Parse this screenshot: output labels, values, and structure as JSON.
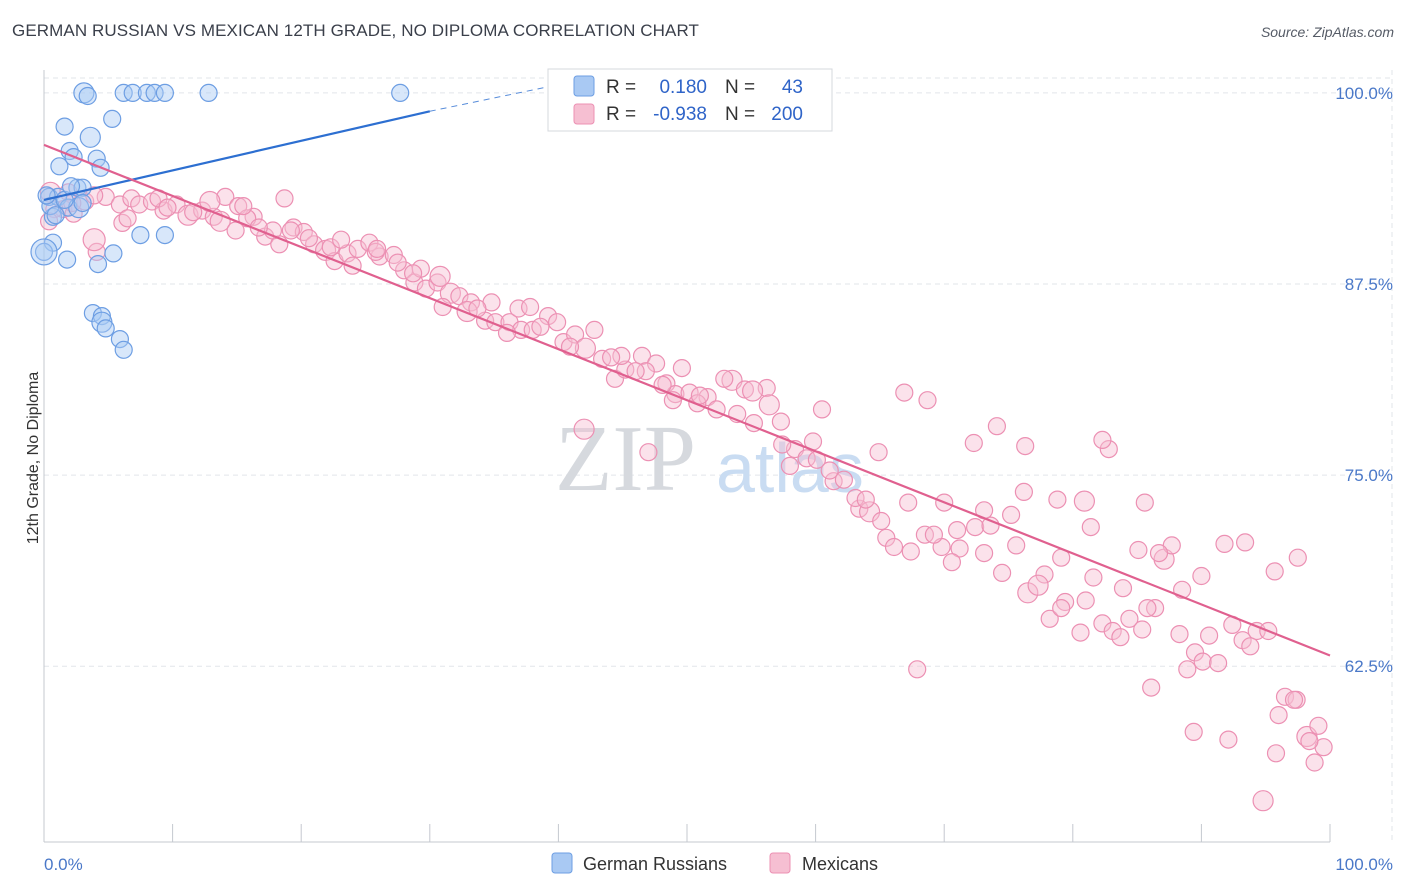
{
  "header": {
    "title": "GERMAN RUSSIAN VS MEXICAN 12TH GRADE, NO DIPLOMA CORRELATION CHART",
    "source": "Source: ZipAtlas.com"
  },
  "watermark": {
    "zip": "ZIP",
    "atlas": "atlas"
  },
  "colors": {
    "blue_fill": "#a9c9f3",
    "blue_stroke": "#6d9ee3",
    "blue_line": "#2d6fd1",
    "pink_fill": "#f6bfd2",
    "pink_stroke": "#ec90b3",
    "pink_line": "#e0608f",
    "grid": "#e2e5ea",
    "tick_text": "#4a78c8"
  },
  "legend_box": {
    "rows": [
      {
        "r_label": "R =",
        "r_value": "0.180",
        "n_label": "N =",
        "n_value": "43"
      },
      {
        "r_label": "R =",
        "r_value": "-0.938",
        "n_label": "N =",
        "n_value": "200"
      }
    ]
  },
  "chart_data": {
    "type": "scatter",
    "title": "GERMAN RUSSIAN VS MEXICAN 12TH GRADE, NO DIPLOMA CORRELATION CHART",
    "xlabel": "",
    "ylabel": "12th Grade, No Diploma",
    "x_range": [
      0,
      100
    ],
    "y_range": [
      51,
      101.5
    ],
    "x_tick_labels": [
      "0.0%",
      "100.0%"
    ],
    "y_ticks": [
      62.5,
      75.0,
      87.5,
      100.0
    ],
    "y_tick_labels": [
      "62.5%",
      "75.0%",
      "87.5%",
      "100.0%"
    ],
    "grid": true,
    "legend": [
      "German Russians",
      "Mexicans"
    ],
    "series": [
      {
        "name": "German Russians",
        "r": 0.18,
        "n": 43,
        "trend": {
          "x0": 0,
          "y0": 93.0,
          "x1": 30,
          "y1": 98.8,
          "dash_to_x": 100,
          "dash_to_y": 111.0
        },
        "points": [
          [
            3.1,
            100
          ],
          [
            6.2,
            100
          ],
          [
            6.9,
            100
          ],
          [
            8.0,
            100
          ],
          [
            8.6,
            100
          ],
          [
            9.4,
            100
          ],
          [
            12.8,
            100
          ],
          [
            27.7,
            100
          ],
          [
            3.4,
            99.8
          ],
          [
            5.3,
            98.3
          ],
          [
            1.6,
            97.8
          ],
          [
            3.6,
            97.1
          ],
          [
            2.0,
            96.2
          ],
          [
            2.3,
            95.8
          ],
          [
            4.1,
            95.7
          ],
          [
            1.2,
            95.2
          ],
          [
            4.4,
            95.1
          ],
          [
            2.6,
            93.8
          ],
          [
            3.0,
            93.8
          ],
          [
            0.4,
            93.2
          ],
          [
            1.1,
            93.2
          ],
          [
            1.9,
            92.5
          ],
          [
            2.7,
            92.5
          ],
          [
            0.7,
            91.9
          ],
          [
            9.4,
            90.7
          ],
          [
            7.5,
            90.7
          ],
          [
            0.7,
            90.2
          ],
          [
            5.4,
            89.5
          ],
          [
            1.8,
            89.1
          ],
          [
            4.2,
            88.8
          ],
          [
            0.0,
            89.6
          ],
          [
            3.8,
            85.6
          ],
          [
            4.5,
            85.4
          ],
          [
            4.5,
            85.0
          ],
          [
            4.8,
            84.6
          ],
          [
            5.9,
            83.9
          ],
          [
            6.2,
            83.2
          ],
          [
            0.5,
            92.6
          ],
          [
            1.6,
            93.0
          ],
          [
            2.1,
            93.9
          ],
          [
            3.0,
            92.8
          ],
          [
            0.9,
            92.0
          ],
          [
            0.2,
            93.3
          ]
        ]
      },
      {
        "name": "Mexicans",
        "r": -0.938,
        "n": 200,
        "trend": {
          "x0": 0,
          "y0": 96.6,
          "x1": 100,
          "y1": 63.2
        },
        "points": [
          [
            0.5,
            93.5
          ],
          [
            1.5,
            92.4
          ],
          [
            2.3,
            92.1
          ],
          [
            3.2,
            92.9
          ],
          [
            4.8,
            93.2
          ],
          [
            5.9,
            92.7
          ],
          [
            6.8,
            93.1
          ],
          [
            7.4,
            92.7
          ],
          [
            8.4,
            92.9
          ],
          [
            9.3,
            92.3
          ],
          [
            10.3,
            92.7
          ],
          [
            11.2,
            92.0
          ],
          [
            12.3,
            92.3
          ],
          [
            13.2,
            91.9
          ],
          [
            14.1,
            93.2
          ],
          [
            15.1,
            92.6
          ],
          [
            16.3,
            91.9
          ],
          [
            17.2,
            90.6
          ],
          [
            18.3,
            90.1
          ],
          [
            19.4,
            91.2
          ],
          [
            20.2,
            90.9
          ],
          [
            21.0,
            90.1
          ],
          [
            21.9,
            89.7
          ],
          [
            22.6,
            89.0
          ],
          [
            23.6,
            89.5
          ],
          [
            24.4,
            89.8
          ],
          [
            25.3,
            90.2
          ],
          [
            26.1,
            89.3
          ],
          [
            27.2,
            89.4
          ],
          [
            28.0,
            88.4
          ],
          [
            28.8,
            87.6
          ],
          [
            29.7,
            87.2
          ],
          [
            30.6,
            87.6
          ],
          [
            31.6,
            86.9
          ],
          [
            32.3,
            86.7
          ],
          [
            33.2,
            86.3
          ],
          [
            34.3,
            85.1
          ],
          [
            35.1,
            85.0
          ],
          [
            36.2,
            85.0
          ],
          [
            37.1,
            84.5
          ],
          [
            38.0,
            84.5
          ],
          [
            39.2,
            85.4
          ],
          [
            40.4,
            83.7
          ],
          [
            41.3,
            84.2
          ],
          [
            42.1,
            83.3
          ],
          [
            43.4,
            82.6
          ],
          [
            44.4,
            81.3
          ],
          [
            45.2,
            81.9
          ],
          [
            46.5,
            82.8
          ],
          [
            47.6,
            82.3
          ],
          [
            48.4,
            81.0
          ],
          [
            49.1,
            80.3
          ],
          [
            50.2,
            80.4
          ],
          [
            51.6,
            80.1
          ],
          [
            52.3,
            79.3
          ],
          [
            53.5,
            81.2
          ],
          [
            54.5,
            80.6
          ],
          [
            55.2,
            78.4
          ],
          [
            56.2,
            80.7
          ],
          [
            57.3,
            78.5
          ],
          [
            58.4,
            76.7
          ],
          [
            59.3,
            76.1
          ],
          [
            60.1,
            76.0
          ],
          [
            61.4,
            74.6
          ],
          [
            62.2,
            74.7
          ],
          [
            63.4,
            72.8
          ],
          [
            64.2,
            72.6
          ],
          [
            65.5,
            70.9
          ],
          [
            66.1,
            70.3
          ],
          [
            67.4,
            70.0
          ],
          [
            68.5,
            71.1
          ],
          [
            69.8,
            70.3
          ],
          [
            71.2,
            70.2
          ],
          [
            72.4,
            71.6
          ],
          [
            73.6,
            71.7
          ],
          [
            74.5,
            68.6
          ],
          [
            75.6,
            70.4
          ],
          [
            76.5,
            67.3
          ],
          [
            77.8,
            68.5
          ],
          [
            78.2,
            65.6
          ],
          [
            79.4,
            66.7
          ],
          [
            80.6,
            64.7
          ],
          [
            81.6,
            68.3
          ],
          [
            82.3,
            65.3
          ],
          [
            83.1,
            64.8
          ],
          [
            84.4,
            65.6
          ],
          [
            85.4,
            64.9
          ],
          [
            86.4,
            66.3
          ],
          [
            87.1,
            69.5
          ],
          [
            88.3,
            64.6
          ],
          [
            89.5,
            63.4
          ],
          [
            90.1,
            62.8
          ],
          [
            91.3,
            62.7
          ],
          [
            92.4,
            65.2
          ],
          [
            93.2,
            64.2
          ],
          [
            94.3,
            64.8
          ],
          [
            95.2,
            64.8
          ],
          [
            96.5,
            60.5
          ],
          [
            97.4,
            60.3
          ],
          [
            98.2,
            57.9
          ],
          [
            99.1,
            58.6
          ],
          [
            99.5,
            57.2
          ],
          [
            95.8,
            56.8
          ],
          [
            98.8,
            56.2
          ],
          [
            0.8,
            92.4
          ],
          [
            1.9,
            93.5
          ],
          [
            3.9,
            93.3
          ],
          [
            6.1,
            91.5
          ],
          [
            8.9,
            93.1
          ],
          [
            11.6,
            92.2
          ],
          [
            13.7,
            91.6
          ],
          [
            15.8,
            91.8
          ],
          [
            17.8,
            91.0
          ],
          [
            19.2,
            91.0
          ],
          [
            20.6,
            90.5
          ],
          [
            22.3,
            89.9
          ],
          [
            24.0,
            88.7
          ],
          [
            25.8,
            89.6
          ],
          [
            27.5,
            88.9
          ],
          [
            29.3,
            88.5
          ],
          [
            31.0,
            86.0
          ],
          [
            32.9,
            85.7
          ],
          [
            34.8,
            86.3
          ],
          [
            36.9,
            85.9
          ],
          [
            38.6,
            84.7
          ],
          [
            40.9,
            83.4
          ],
          [
            42.8,
            84.5
          ],
          [
            44.9,
            82.8
          ],
          [
            46.8,
            81.8
          ],
          [
            48.9,
            79.9
          ],
          [
            50.8,
            79.7
          ],
          [
            52.9,
            81.3
          ],
          [
            55.1,
            80.5
          ],
          [
            57.4,
            77.0
          ],
          [
            59.8,
            77.2
          ],
          [
            61.1,
            75.3
          ],
          [
            63.1,
            73.5
          ],
          [
            65.1,
            72.0
          ],
          [
            67.2,
            73.2
          ],
          [
            69.2,
            71.1
          ],
          [
            71.0,
            71.4
          ],
          [
            73.1,
            69.9
          ],
          [
            75.2,
            72.4
          ],
          [
            77.3,
            67.8
          ],
          [
            79.1,
            66.3
          ],
          [
            81.0,
            66.8
          ],
          [
            83.7,
            64.4
          ],
          [
            85.8,
            66.3
          ],
          [
            88.5,
            67.5
          ],
          [
            90.6,
            64.5
          ],
          [
            93.8,
            63.8
          ],
          [
            96.0,
            59.3
          ],
          [
            97.2,
            60.3
          ],
          [
            98.4,
            57.6
          ],
          [
            42.0,
            78.0
          ],
          [
            47.0,
            76.5
          ],
          [
            58.0,
            75.6
          ],
          [
            60.5,
            79.3
          ],
          [
            64.9,
            76.5
          ],
          [
            66.9,
            80.4
          ],
          [
            68.7,
            79.9
          ],
          [
            72.3,
            77.1
          ],
          [
            74.1,
            78.2
          ],
          [
            76.3,
            76.9
          ],
          [
            78.8,
            73.4
          ],
          [
            80.9,
            73.3
          ],
          [
            82.8,
            76.7
          ],
          [
            85.6,
            73.2
          ],
          [
            87.7,
            70.4
          ],
          [
            90.0,
            68.4
          ],
          [
            91.8,
            70.5
          ],
          [
            93.4,
            70.6
          ],
          [
            95.7,
            68.7
          ],
          [
            97.5,
            69.6
          ],
          [
            6.5,
            91.8
          ],
          [
            9.6,
            92.5
          ],
          [
            12.9,
            92.9
          ],
          [
            15.5,
            92.6
          ],
          [
            18.7,
            93.1
          ],
          [
            4.1,
            89.6
          ],
          [
            0.4,
            91.6
          ],
          [
            2.2,
            92.8
          ],
          [
            14.9,
            91.0
          ],
          [
            16.7,
            91.2
          ],
          [
            23.1,
            90.4
          ],
          [
            25.9,
            89.8
          ],
          [
            28.7,
            88.2
          ],
          [
            30.8,
            88.0
          ],
          [
            33.7,
            85.9
          ],
          [
            36.0,
            84.3
          ],
          [
            37.8,
            86.0
          ],
          [
            39.9,
            85.0
          ],
          [
            44.1,
            82.7
          ],
          [
            46.0,
            81.8
          ],
          [
            48.1,
            80.9
          ],
          [
            49.6,
            82.0
          ],
          [
            51.0,
            80.2
          ],
          [
            53.9,
            79.0
          ],
          [
            56.4,
            79.6
          ],
          [
            63.9,
            73.4
          ],
          [
            70.0,
            73.2
          ],
          [
            73.1,
            72.7
          ],
          [
            76.2,
            73.9
          ],
          [
            79.1,
            69.6
          ],
          [
            82.3,
            77.3
          ],
          [
            85.1,
            70.1
          ],
          [
            86.7,
            69.9
          ],
          [
            88.9,
            62.3
          ],
          [
            92.1,
            57.7
          ],
          [
            94.8,
            53.7
          ],
          [
            81.4,
            71.6
          ],
          [
            83.9,
            67.6
          ],
          [
            67.9,
            62.3
          ],
          [
            70.6,
            69.3
          ],
          [
            86.1,
            61.1
          ],
          [
            89.4,
            58.2
          ]
        ]
      }
    ]
  },
  "bottom_legend": {
    "items": [
      "German Russians",
      "Mexicans"
    ]
  }
}
